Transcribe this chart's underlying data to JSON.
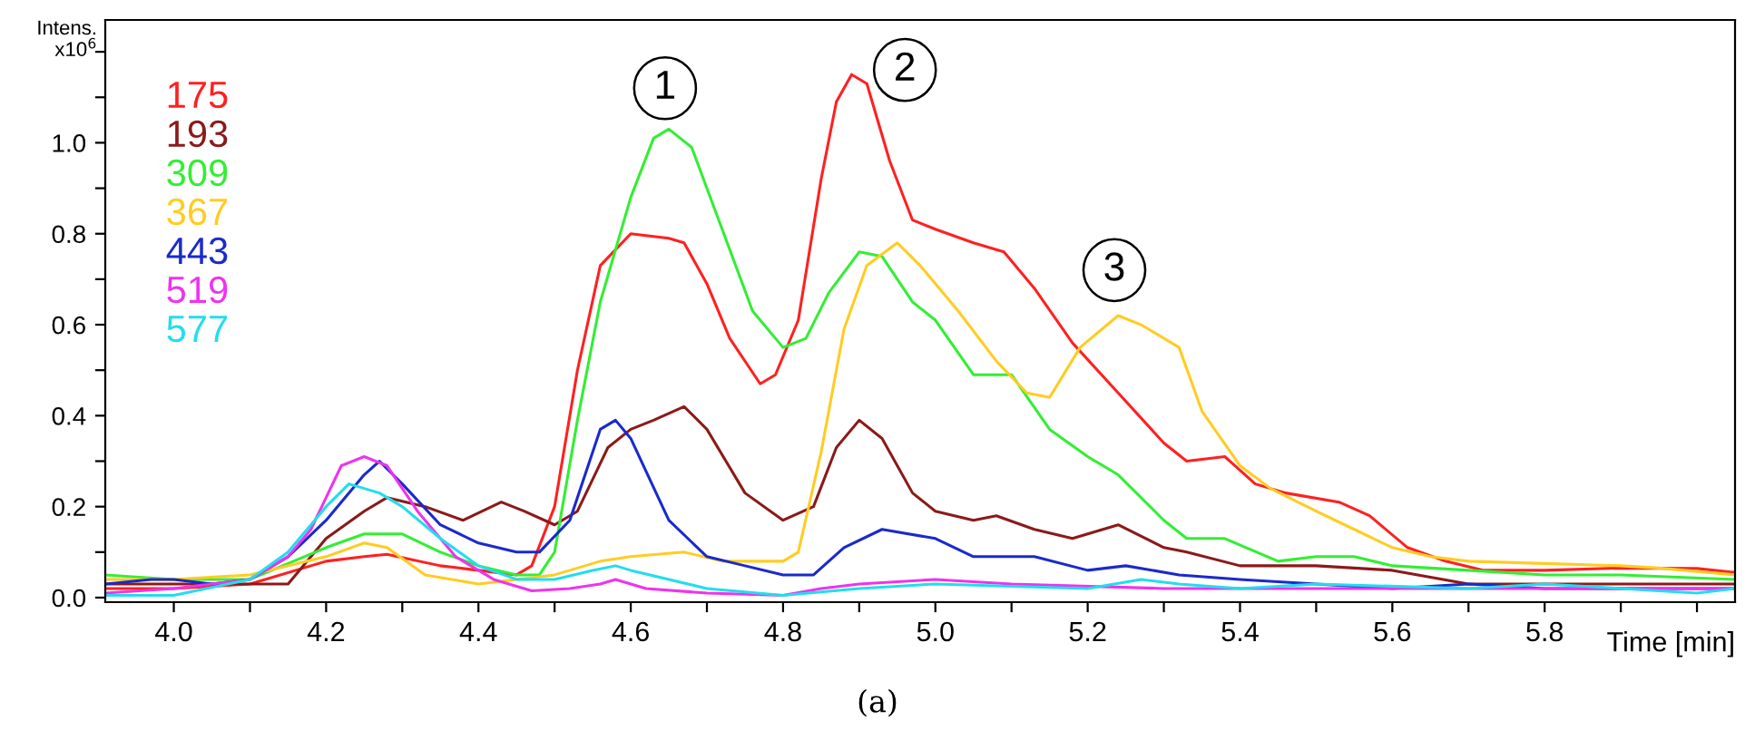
{
  "chart_data": {
    "type": "line",
    "xlabel": "Time [min]",
    "ylabel": "Intens.\nx10$^{6}$",
    "xlim": [
      3.91,
      6.05
    ],
    "ylim": [
      -0.01,
      1.27
    ],
    "xticks": [
      {
        "value": 4.0,
        "label": "4.0"
      },
      {
        "value": 4.1,
        "label": null
      },
      {
        "value": 4.2,
        "label": "4.2"
      },
      {
        "value": 4.3,
        "label": null
      },
      {
        "value": 4.4,
        "label": "4.4"
      },
      {
        "value": 4.5,
        "label": null
      },
      {
        "value": 4.6,
        "label": "4.6"
      },
      {
        "value": 4.7,
        "label": null
      },
      {
        "value": 4.8,
        "label": "4.8"
      },
      {
        "value": 4.9,
        "label": null
      },
      {
        "value": 5.0,
        "label": "5.0"
      },
      {
        "value": 5.1,
        "label": null
      },
      {
        "value": 5.2,
        "label": "5.2"
      },
      {
        "value": 5.3,
        "label": null
      },
      {
        "value": 5.4,
        "label": "5.4"
      },
      {
        "value": 5.5,
        "label": null
      },
      {
        "value": 5.6,
        "label": "5.6"
      },
      {
        "value": 5.7,
        "label": null
      },
      {
        "value": 5.8,
        "label": "5.8"
      },
      {
        "value": 5.9,
        "label": null
      },
      {
        "value": 6.0,
        "label": null
      }
    ],
    "yticks": [
      {
        "value": 0.0,
        "label": "0.0"
      },
      {
        "value": 0.1,
        "label": null
      },
      {
        "value": 0.2,
        "label": "0.2"
      },
      {
        "value": 0.3,
        "label": null
      },
      {
        "value": 0.4,
        "label": "0.4"
      },
      {
        "value": 0.5,
        "label": null
      },
      {
        "value": 0.6,
        "label": "0.6"
      },
      {
        "value": 0.7,
        "label": null
      },
      {
        "value": 0.8,
        "label": "0.8"
      },
      {
        "value": 0.9,
        "label": null
      },
      {
        "value": 1.0,
        "label": "1.0"
      },
      {
        "value": 1.1,
        "label": null
      },
      {
        "value": 1.2,
        "label": null
      }
    ],
    "grid": false,
    "legend": "top left",
    "marker": "none",
    "line_style": "solid",
    "annotations": [
      {
        "text": "1",
        "x": 4.645,
        "y": 1.12
      },
      {
        "text": "2",
        "x": 4.96,
        "y": 1.16
      },
      {
        "text": "3",
        "x": 5.235,
        "y": 0.72
      },
      "(a)"
    ],
    "series": [
      {
        "name": "175",
        "color": "#ff2020",
        "x": [
          3.91,
          4.0,
          4.1,
          4.2,
          4.25,
          4.28,
          4.35,
          4.4,
          4.45,
          4.47,
          4.5,
          4.53,
          4.56,
          4.6,
          4.65,
          4.67,
          4.7,
          4.73,
          4.77,
          4.79,
          4.82,
          4.85,
          4.87,
          4.89,
          4.91,
          4.94,
          4.97,
          5.0,
          5.05,
          5.09,
          5.13,
          5.18,
          5.24,
          5.3,
          5.33,
          5.38,
          5.42,
          5.46,
          5.53,
          5.57,
          5.62,
          5.67,
          5.72,
          5.8,
          5.9,
          6.0,
          6.05
        ],
        "values": [
          0.02,
          0.02,
          0.03,
          0.08,
          0.09,
          0.095,
          0.07,
          0.06,
          0.05,
          0.07,
          0.2,
          0.5,
          0.73,
          0.8,
          0.79,
          0.78,
          0.69,
          0.57,
          0.47,
          0.49,
          0.61,
          0.92,
          1.09,
          1.15,
          1.13,
          0.96,
          0.83,
          0.81,
          0.78,
          0.76,
          0.68,
          0.56,
          0.45,
          0.34,
          0.3,
          0.31,
          0.25,
          0.23,
          0.21,
          0.18,
          0.11,
          0.08,
          0.06,
          0.06,
          0.065,
          0.064,
          0.055
        ]
      },
      {
        "name": "193",
        "color": "#8b1a1a",
        "x": [
          3.91,
          4.0,
          4.1,
          4.15,
          4.2,
          4.25,
          4.28,
          4.33,
          4.38,
          4.43,
          4.46,
          4.5,
          4.53,
          4.57,
          4.6,
          4.63,
          4.67,
          4.7,
          4.75,
          4.8,
          4.84,
          4.87,
          4.9,
          4.93,
          4.97,
          5.0,
          5.05,
          5.08,
          5.13,
          5.18,
          5.24,
          5.3,
          5.33,
          5.4,
          5.45,
          5.5,
          5.6,
          5.7,
          5.8,
          5.9,
          6.05
        ],
        "values": [
          0.03,
          0.03,
          0.03,
          0.03,
          0.13,
          0.19,
          0.22,
          0.2,
          0.17,
          0.21,
          0.19,
          0.16,
          0.19,
          0.33,
          0.37,
          0.39,
          0.42,
          0.37,
          0.23,
          0.17,
          0.2,
          0.33,
          0.39,
          0.35,
          0.23,
          0.19,
          0.17,
          0.18,
          0.15,
          0.13,
          0.16,
          0.11,
          0.1,
          0.07,
          0.07,
          0.07,
          0.06,
          0.03,
          0.03,
          0.03,
          0.03
        ]
      },
      {
        "name": "309",
        "color": "#33ee33",
        "x": [
          3.91,
          4.0,
          4.1,
          4.2,
          4.25,
          4.3,
          4.35,
          4.4,
          4.45,
          4.48,
          4.5,
          4.53,
          4.56,
          4.6,
          4.63,
          4.65,
          4.68,
          4.72,
          4.76,
          4.8,
          4.83,
          4.86,
          4.9,
          4.93,
          4.97,
          5.0,
          5.05,
          5.1,
          5.15,
          5.2,
          5.24,
          5.3,
          5.33,
          5.38,
          5.45,
          5.5,
          5.55,
          5.6,
          5.7,
          5.8,
          5.9,
          6.05
        ],
        "values": [
          0.05,
          0.04,
          0.04,
          0.11,
          0.14,
          0.14,
          0.1,
          0.07,
          0.05,
          0.05,
          0.1,
          0.39,
          0.65,
          0.88,
          1.01,
          1.03,
          0.99,
          0.81,
          0.63,
          0.55,
          0.57,
          0.67,
          0.76,
          0.75,
          0.65,
          0.61,
          0.49,
          0.49,
          0.37,
          0.31,
          0.27,
          0.17,
          0.13,
          0.13,
          0.08,
          0.09,
          0.09,
          0.07,
          0.06,
          0.05,
          0.05,
          0.04
        ]
      },
      {
        "name": "367",
        "color": "#ffcc22",
        "x": [
          3.91,
          4.0,
          4.1,
          4.2,
          4.25,
          4.28,
          4.33,
          4.4,
          4.45,
          4.5,
          4.56,
          4.6,
          4.67,
          4.72,
          4.8,
          4.82,
          4.85,
          4.88,
          4.91,
          4.95,
          4.98,
          5.03,
          5.08,
          5.12,
          5.15,
          5.19,
          5.24,
          5.27,
          5.32,
          5.35,
          5.4,
          5.44,
          5.5,
          5.55,
          5.6,
          5.65,
          5.7,
          5.8,
          5.9,
          5.95,
          6.05
        ],
        "values": [
          0.04,
          0.04,
          0.05,
          0.09,
          0.12,
          0.11,
          0.05,
          0.03,
          0.04,
          0.05,
          0.08,
          0.09,
          0.1,
          0.08,
          0.08,
          0.1,
          0.32,
          0.59,
          0.73,
          0.78,
          0.73,
          0.63,
          0.52,
          0.45,
          0.44,
          0.55,
          0.62,
          0.6,
          0.55,
          0.41,
          0.29,
          0.24,
          0.19,
          0.15,
          0.11,
          0.09,
          0.08,
          0.075,
          0.07,
          0.065,
          0.05
        ]
      },
      {
        "name": "443",
        "color": "#1a2acc",
        "x": [
          3.91,
          3.97,
          4.0,
          4.05,
          4.1,
          4.15,
          4.2,
          4.25,
          4.27,
          4.3,
          4.35,
          4.4,
          4.45,
          4.48,
          4.52,
          4.56,
          4.58,
          4.6,
          4.65,
          4.7,
          4.75,
          4.8,
          4.84,
          4.88,
          4.93,
          5.0,
          5.05,
          5.1,
          5.13,
          5.2,
          5.25,
          5.32,
          5.4,
          5.5,
          5.6,
          5.7,
          5.8,
          5.9,
          6.05
        ],
        "values": [
          0.03,
          0.04,
          0.04,
          0.03,
          0.04,
          0.09,
          0.17,
          0.27,
          0.3,
          0.25,
          0.16,
          0.12,
          0.1,
          0.1,
          0.17,
          0.37,
          0.39,
          0.35,
          0.17,
          0.09,
          0.07,
          0.05,
          0.05,
          0.11,
          0.15,
          0.13,
          0.09,
          0.09,
          0.09,
          0.06,
          0.07,
          0.05,
          0.04,
          0.03,
          0.02,
          0.03,
          0.02,
          0.02,
          0.02
        ]
      },
      {
        "name": "519",
        "color": "#ee33ee",
        "x": [
          3.91,
          4.0,
          4.1,
          4.15,
          4.18,
          4.2,
          4.22,
          4.25,
          4.28,
          4.32,
          4.37,
          4.42,
          4.47,
          4.52,
          4.56,
          4.58,
          4.62,
          4.7,
          4.8,
          4.85,
          4.9,
          5.0,
          5.1,
          5.3,
          5.5,
          5.7,
          6.05
        ],
        "values": [
          0.01,
          0.02,
          0.04,
          0.09,
          0.15,
          0.22,
          0.29,
          0.31,
          0.29,
          0.19,
          0.09,
          0.04,
          0.015,
          0.02,
          0.03,
          0.04,
          0.02,
          0.01,
          0.005,
          0.02,
          0.03,
          0.04,
          0.03,
          0.02,
          0.02,
          0.02,
          0.02
        ]
      },
      {
        "name": "577",
        "color": "#22ddee",
        "x": [
          3.91,
          4.0,
          4.1,
          4.15,
          4.2,
          4.23,
          4.27,
          4.3,
          4.35,
          4.4,
          4.45,
          4.5,
          4.55,
          4.58,
          4.6,
          4.7,
          4.8,
          4.9,
          5.0,
          5.2,
          5.27,
          5.32,
          5.4,
          5.5,
          5.7,
          5.8,
          6.0,
          6.05
        ],
        "values": [
          0.005,
          0.005,
          0.04,
          0.1,
          0.2,
          0.25,
          0.23,
          0.2,
          0.13,
          0.07,
          0.04,
          0.04,
          0.06,
          0.07,
          0.06,
          0.02,
          0.005,
          0.02,
          0.03,
          0.02,
          0.04,
          0.03,
          0.02,
          0.03,
          0.02,
          0.03,
          0.01,
          0.02
        ]
      }
    ]
  }
}
